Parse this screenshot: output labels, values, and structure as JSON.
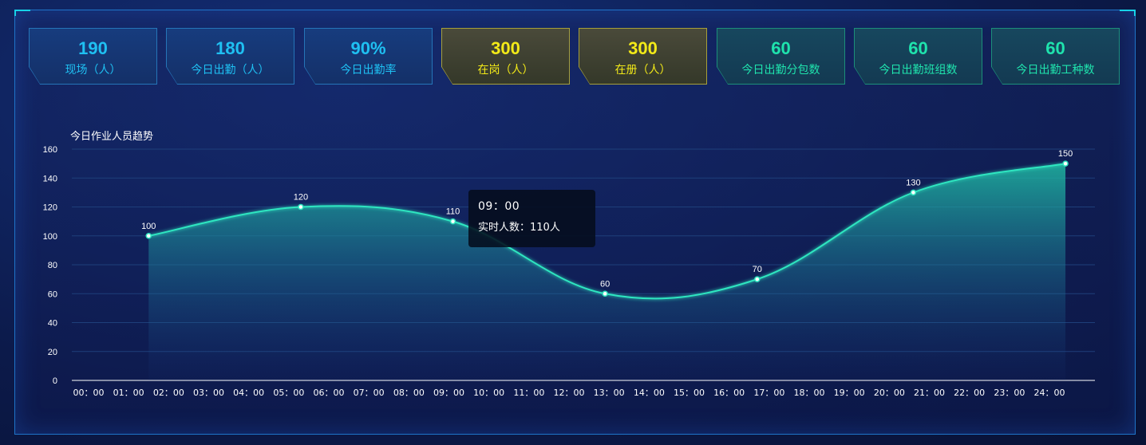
{
  "stats": [
    {
      "value": "190",
      "label": "现场（人）",
      "theme": "blue"
    },
    {
      "value": "180",
      "label": "今日出勤（人）",
      "theme": "blue"
    },
    {
      "value": "90%",
      "label": "今日出勤率",
      "theme": "blue"
    },
    {
      "value": "300",
      "label": "在岗（人）",
      "theme": "yellow"
    },
    {
      "value": "300",
      "label": "在册（人）",
      "theme": "yellow"
    },
    {
      "value": "60",
      "label": "今日出勤分包数",
      "theme": "green"
    },
    {
      "value": "60",
      "label": "今日出勤班组数",
      "theme": "green"
    },
    {
      "value": "60",
      "label": "今日出勤工种数",
      "theme": "green"
    }
  ],
  "colors": {
    "blue": "#1fc0f2",
    "yellow": "#f3ea18",
    "green": "#1fe3ad",
    "line": "#2fe6c0",
    "axis_text": "#ffffff",
    "panel_border": "#1f74c8"
  },
  "tooltip": {
    "time": "09：00",
    "text": "实时人数：110人"
  },
  "chart_data": {
    "type": "area",
    "title": "今日作业人员趋势",
    "categories": [
      "00：00",
      "01：00",
      "02：00",
      "03：00",
      "04：00",
      "05：00",
      "06：00",
      "07：00",
      "08：00",
      "09：00",
      "10：00",
      "11：00",
      "12：00",
      "13：00",
      "14：00",
      "15：00",
      "16：00",
      "17：00",
      "18：00",
      "19：00",
      "20：00",
      "21：00",
      "22：00",
      "23：00",
      "24：00"
    ],
    "yticks": [
      0,
      20,
      40,
      60,
      80,
      100,
      120,
      140,
      160
    ],
    "ylim": [
      0,
      160
    ],
    "points": [
      {
        "x": 1.5,
        "y": 100
      },
      {
        "x": 5.3,
        "y": 120
      },
      {
        "x": 9.1,
        "y": 110
      },
      {
        "x": 12.9,
        "y": 60
      },
      {
        "x": 16.7,
        "y": 70
      },
      {
        "x": 20.6,
        "y": 130
      },
      {
        "x": 24.4,
        "y": 150
      }
    ],
    "grid": true
  }
}
